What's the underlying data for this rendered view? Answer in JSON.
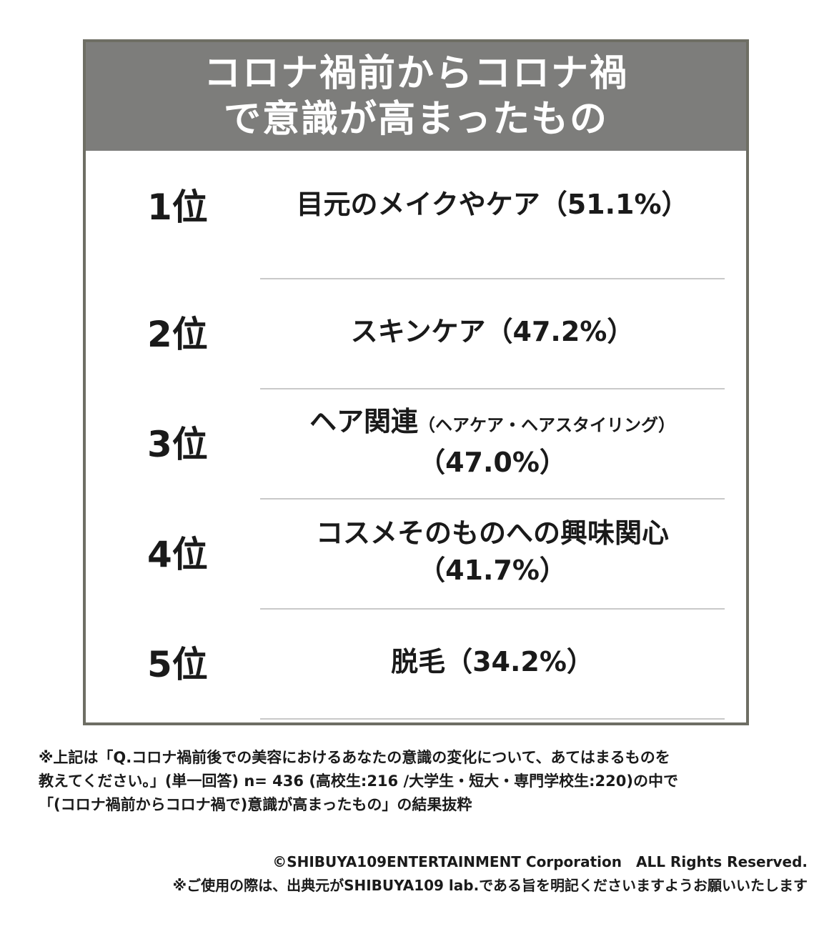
{
  "card": {
    "title_line1": "コロナ禍前からコロナ禍",
    "title_line2": "で意識が高まったもの"
  },
  "rankings": [
    {
      "rank": "1位",
      "item": "目元のメイクやケア（51.1%）",
      "sub": "",
      "percent": ""
    },
    {
      "rank": "2位",
      "item": "スキンケア（47.2%）",
      "sub": "",
      "percent": ""
    },
    {
      "rank": "3位",
      "item": "ヘア関連",
      "sub": "（ヘアケア・ヘアスタイリング）",
      "percent": "（47.0%）"
    },
    {
      "rank": "4位",
      "item": "コスメそのものへの興味関心",
      "sub": "",
      "percent": "（41.7%）"
    },
    {
      "rank": "5位",
      "item": "脱毛（34.2%）",
      "sub": "",
      "percent": ""
    }
  ],
  "footnote": {
    "line1": "※上記は「Q.コロナ禍前後での美容におけるあなたの意識の変化について、あてはまるものを",
    "line2": "教えてください。」(単一回答) n= 436 (高校生:216 /大学生・短大・専門学校生:220)の中で",
    "line3": "「(コロナ禍前からコロナ禍で)意識が高まったもの」の結果抜粋"
  },
  "copyright": {
    "line1": "©SHIBUYA109ENTERTAINMENT Corporation　ALL Rights Reserved.",
    "line2": "※ご使用の際は、出典元がSHIBUYA109 lab.である旨を明記くださいますようお願いいたします"
  },
  "colors": {
    "header_bg": "#7d7d7b",
    "border": "#6e6e64",
    "divider": "#c9c9c9"
  }
}
